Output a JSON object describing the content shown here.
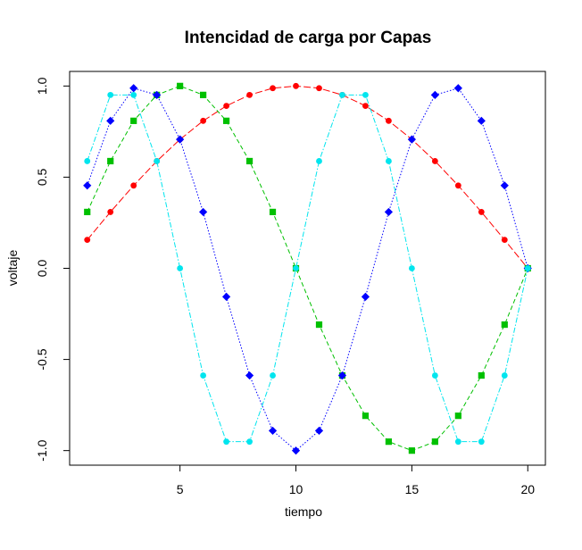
{
  "chart_data": {
    "type": "line",
    "title": "Intencidad de carga por Capas",
    "xlabel": "tiempo",
    "ylabel": "voltaje",
    "xlim": [
      0.24,
      20.76
    ],
    "ylim": [
      -1.08,
      1.08
    ],
    "xticks": [
      5,
      10,
      15,
      20
    ],
    "xtick_labels": [
      "5",
      "10",
      "15",
      "20"
    ],
    "yticks": [
      -1.0,
      -0.5,
      0.0,
      0.5,
      1.0
    ],
    "ytick_labels": [
      "-1.0",
      "-0.5",
      "0.0",
      "0.5",
      "1.0"
    ],
    "grid": false,
    "x": [
      1,
      2,
      3,
      4,
      5,
      6,
      7,
      8,
      9,
      10,
      11,
      12,
      13,
      14,
      15,
      16,
      17,
      18,
      19,
      20
    ],
    "series": [
      {
        "color": "#ff0000",
        "marker": "circle",
        "dash": "8,3",
        "values": [
          0.156,
          0.309,
          0.454,
          0.588,
          0.707,
          0.809,
          0.891,
          0.951,
          0.988,
          1.0,
          0.988,
          0.951,
          0.891,
          0.809,
          0.707,
          0.588,
          0.454,
          0.309,
          0.156,
          0.0
        ]
      },
      {
        "color": "#00c000",
        "marker": "square",
        "dash": "5,3",
        "values": [
          0.309,
          0.588,
          0.809,
          0.951,
          1.0,
          0.951,
          0.809,
          0.588,
          0.309,
          0.0,
          -0.309,
          -0.588,
          -0.809,
          -0.951,
          -1.0,
          -0.951,
          -0.809,
          -0.588,
          -0.309,
          0.0
        ]
      },
      {
        "color": "#0000ff",
        "marker": "diamond",
        "dash": "1.5,2",
        "values": [
          0.454,
          0.809,
          0.988,
          0.951,
          0.707,
          0.309,
          -0.156,
          -0.588,
          -0.891,
          -1.0,
          -0.891,
          -0.588,
          -0.156,
          0.309,
          0.707,
          0.951,
          0.988,
          0.809,
          0.454,
          0.0
        ]
      },
      {
        "color": "#00e5ee",
        "marker": "circle",
        "dash": "6,2,1.5,2",
        "values": [
          0.588,
          0.951,
          0.951,
          0.588,
          0.0,
          -0.588,
          -0.951,
          -0.951,
          -0.588,
          0.0,
          0.588,
          0.951,
          0.951,
          0.588,
          0.0,
          -0.588,
          -0.951,
          -0.951,
          -0.588,
          0.0
        ]
      }
    ]
  }
}
